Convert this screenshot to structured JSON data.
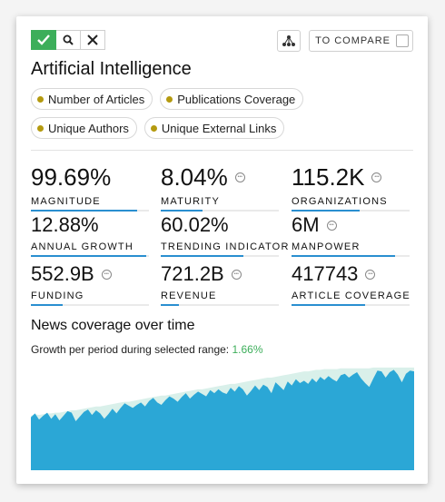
{
  "toolbar": {
    "check_icon": "check-icon",
    "search_icon": "search-icon",
    "close_icon": "close-icon",
    "network_icon": "network-icon",
    "compare_label": "TO COMPARE"
  },
  "title": "Artificial Intelligence",
  "chips": [
    {
      "label": "Number of Articles"
    },
    {
      "label": "Publications Coverage"
    },
    {
      "label": "Unique Authors"
    },
    {
      "label": "Unique External Links"
    }
  ],
  "chip_dot_color": "#b49a0f",
  "metrics": [
    {
      "value": "99.69%",
      "label": "MAGNITUDE",
      "info": false,
      "bar": 0.9
    },
    {
      "value": "8.04%",
      "label": "MATURITY",
      "info": true,
      "bar": 0.35
    },
    {
      "value": "115.2K",
      "label": "ORGANIZATIONS",
      "info": true,
      "bar": 0.58
    },
    {
      "value": "12.88%",
      "label": "ANNUAL GROWTH",
      "info": false,
      "bar": 0.98
    },
    {
      "value": "60.02%",
      "label": "TRENDING INDICATOR",
      "info": false,
      "bar": 0.7
    },
    {
      "value": "6M",
      "label": "MANPOWER",
      "info": true,
      "bar": 0.88
    },
    {
      "value": "552.9B",
      "label": "FUNDING",
      "info": true,
      "bar": 0.27
    },
    {
      "value": "721.2B",
      "label": "REVENUE",
      "info": true,
      "bar": 0.15
    },
    {
      "value": "417743",
      "label": "ARTICLE COVERAGE",
      "info": true,
      "bar": 0.62
    }
  ],
  "info_icon": "info-icon",
  "news": {
    "title": "News coverage over time",
    "growth_label": "Growth per period during selected range: ",
    "growth_value": "1.66%"
  },
  "colors": {
    "accent_green": "#3cae5a",
    "bar_blue": "#2a8fd0",
    "area_blue": "#2ba7d6",
    "area_light": "#d9f0ea"
  },
  "chart_data": {
    "type": "area",
    "series": [
      {
        "values": [
          68,
          73,
          65,
          70,
          74,
          66,
          72,
          64,
          70,
          76,
          74,
          63,
          69,
          75,
          78,
          71,
          77,
          73,
          66,
          72,
          79,
          73,
          80,
          86,
          83,
          80,
          84,
          87,
          82,
          89,
          93,
          87,
          84,
          90,
          95,
          92,
          88,
          94,
          99,
          92,
          97,
          101,
          98,
          95,
          103,
          99,
          104,
          100,
          98,
          106,
          101,
          108,
          104,
          96,
          102,
          109,
          103,
          110,
          107,
          99,
          113,
          108,
          103,
          114,
          109,
          117,
          112,
          115,
          111,
          118,
          113,
          120,
          116,
          121,
          117,
          114,
          122,
          124,
          119,
          123,
          126,
          118,
          112,
          107,
          118,
          128,
          127,
          119,
          126,
          129,
          123,
          113,
          124,
          128,
          127
        ]
      },
      {
        "values": [
          70,
          72,
          71,
          72,
          73,
          73,
          74,
          74,
          75,
          76,
          77,
          77,
          78,
          79,
          80,
          81,
          82,
          82,
          83,
          84,
          85,
          86,
          87,
          88,
          88,
          89,
          90,
          91,
          92,
          93,
          94,
          95,
          96,
          96,
          97,
          98,
          99,
          100,
          101,
          102,
          103,
          104,
          104,
          105,
          106,
          107,
          108,
          109,
          110,
          111,
          111,
          112,
          113,
          114,
          115,
          116,
          117,
          118,
          119,
          119,
          120,
          121,
          122,
          123,
          124,
          125,
          126,
          127,
          127,
          128,
          129,
          129,
          130,
          130,
          130,
          130,
          131,
          131,
          131,
          131,
          131,
          131,
          131,
          131,
          132,
          132,
          132,
          132,
          132,
          132,
          132,
          132,
          132,
          132,
          132
        ]
      }
    ],
    "ylim": [
      0,
      140
    ]
  }
}
